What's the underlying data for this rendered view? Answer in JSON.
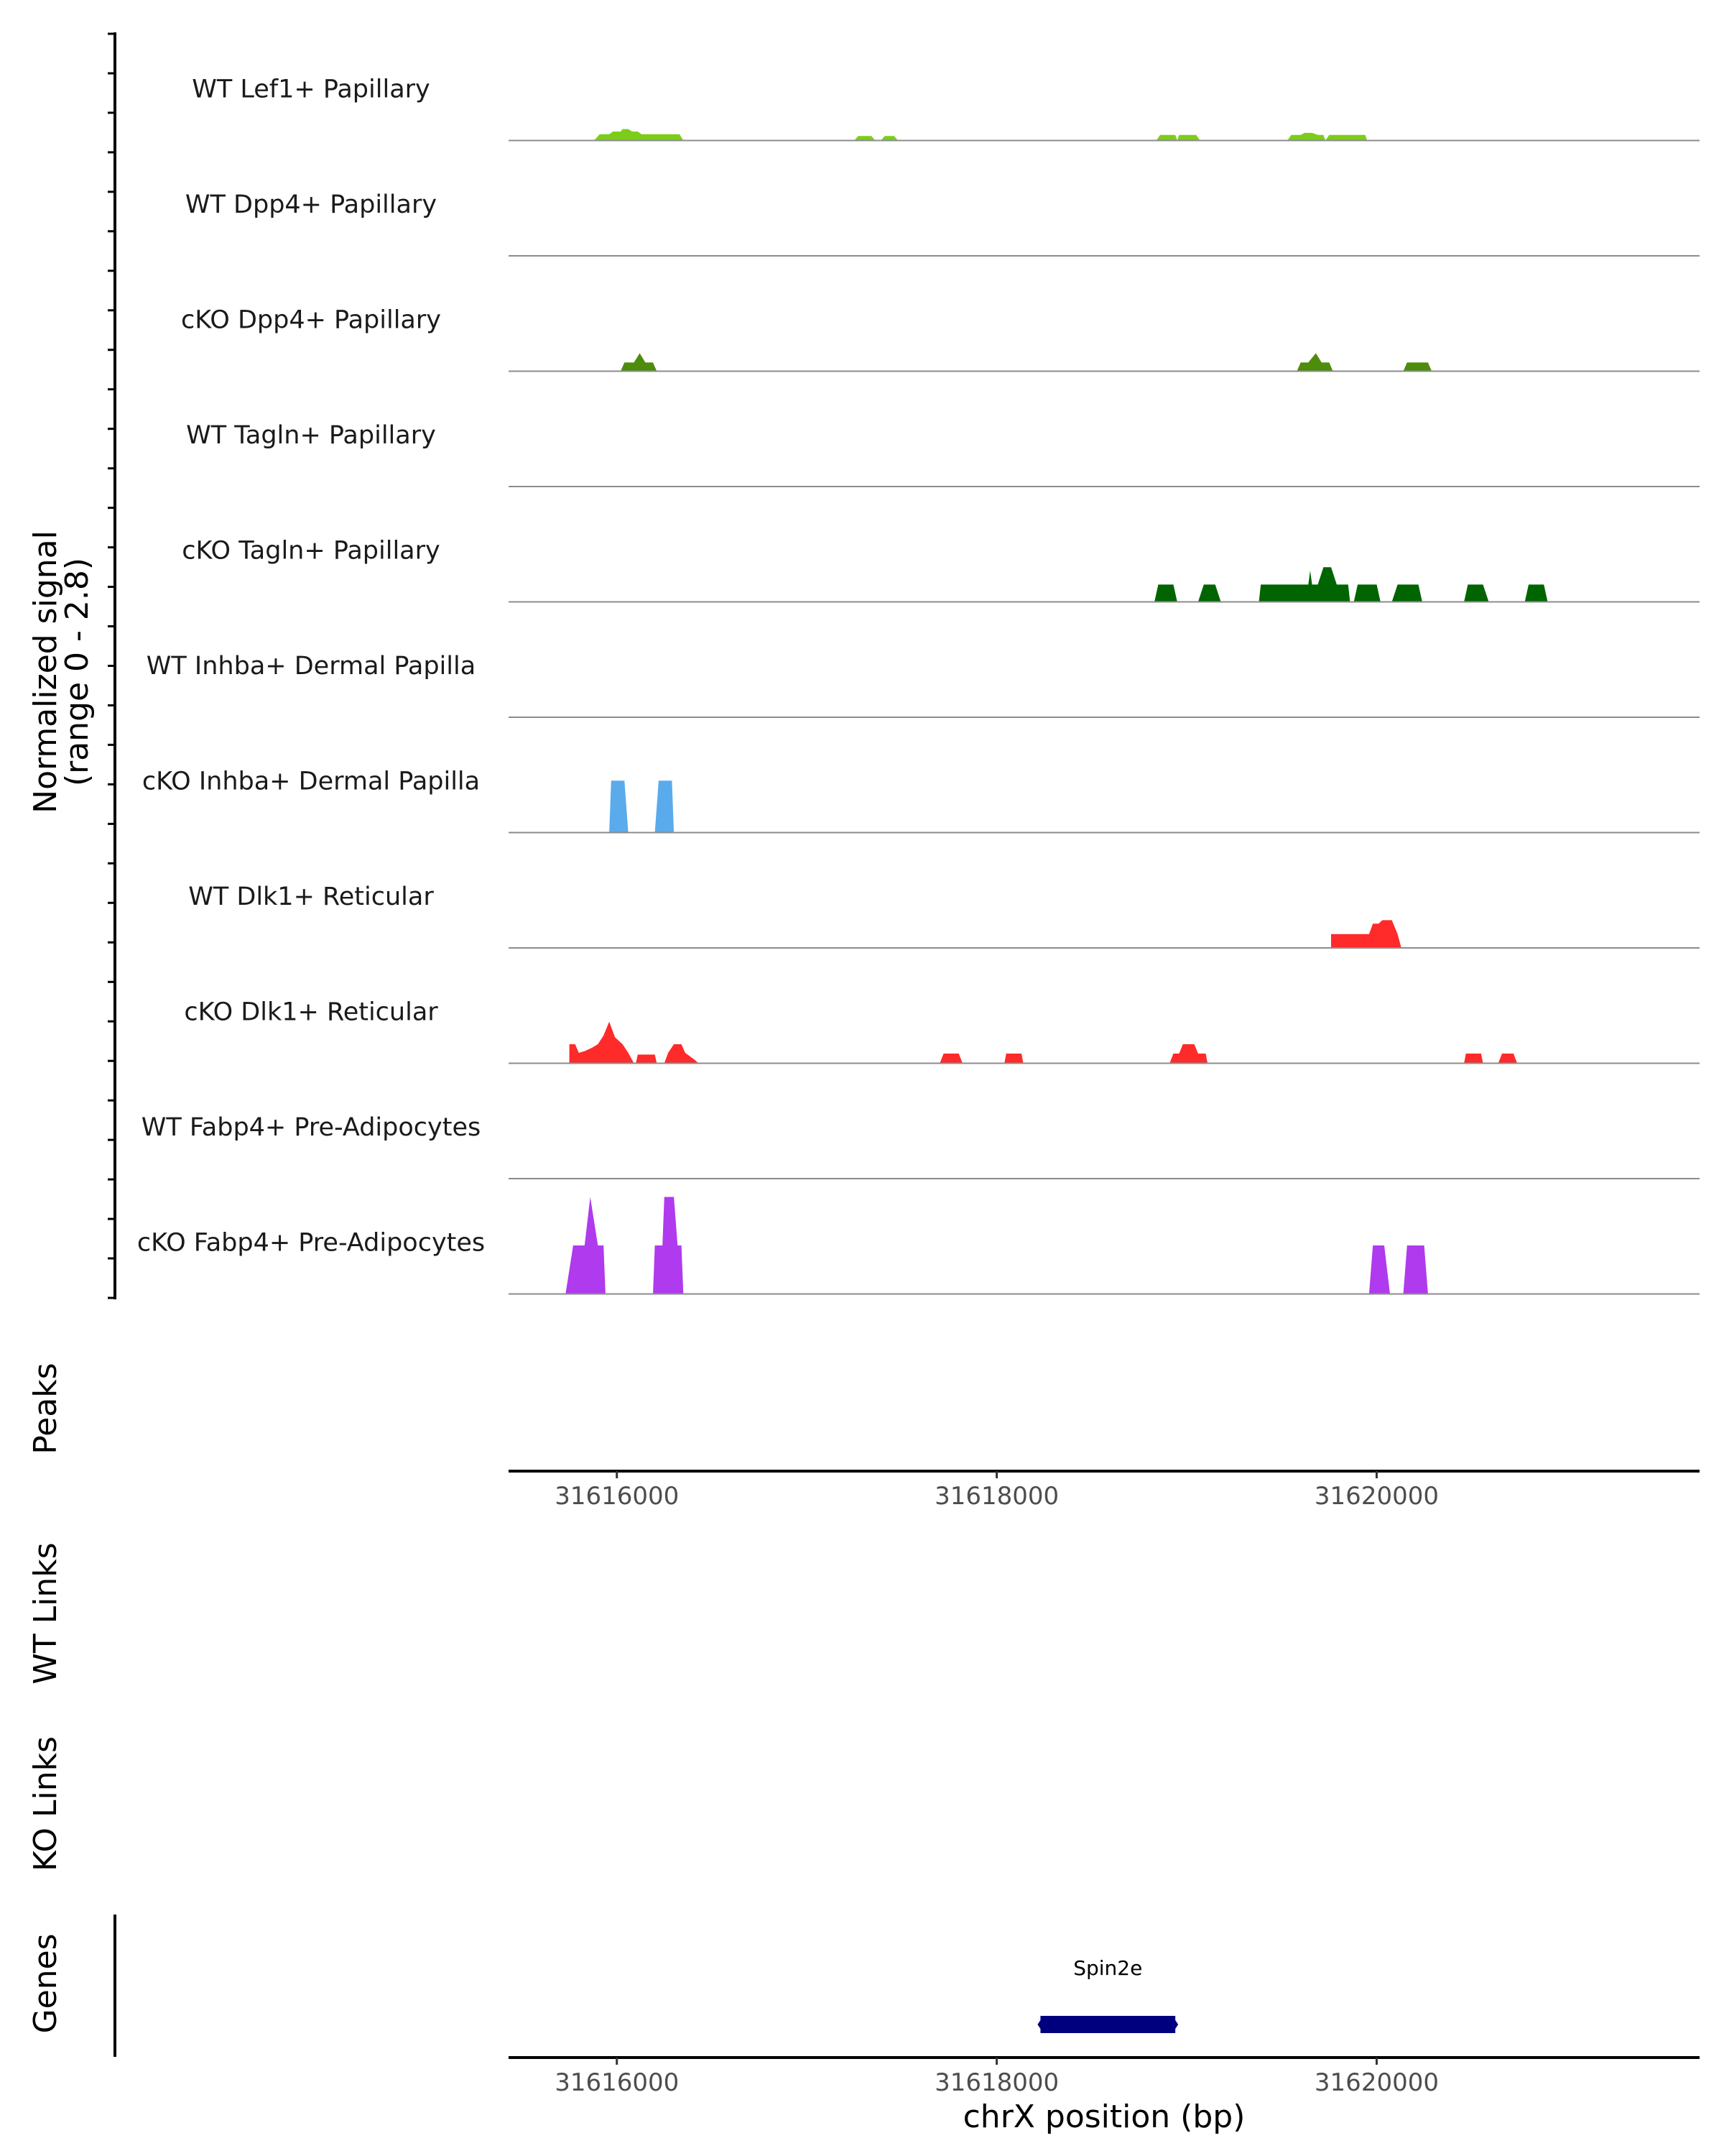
{
  "chart_data": {
    "type": "area",
    "title": "",
    "ylabel": "Normalized signal",
    "yrange_label": "(range 0 - 2.8)",
    "ylim": [
      0,
      2.8
    ],
    "xlabel": "chrX position (bp)",
    "xlim": [
      31615430,
      31621700
    ],
    "x_ticks": [
      31616000,
      31618000,
      31620000
    ],
    "x_tick_labels": [
      "31616000",
      "31618000",
      "31620000"
    ],
    "colors": {
      "lef1": "#7ccd1a",
      "papillary_dark": "#4e8c0c",
      "tagln": "#006400",
      "inhba": "#5aabec",
      "dlk1": "#ff2a2a",
      "fabp4": "#b03aee",
      "gene": "#00007f",
      "baseline": "#8c8c8c"
    },
    "tracks": [
      {
        "label": "WT Lef1+ Papillary",
        "color": "#7ccd1a",
        "points": [
          [
            31615880,
            0
          ],
          [
            31615910,
            0.18
          ],
          [
            31615960,
            0.18
          ],
          [
            31615980,
            0.26
          ],
          [
            31616020,
            0.26
          ],
          [
            31616030,
            0.33
          ],
          [
            31616060,
            0.33
          ],
          [
            31616080,
            0.26
          ],
          [
            31616110,
            0.26
          ],
          [
            31616130,
            0.18
          ],
          [
            31616330,
            0.18
          ],
          [
            31616350,
            0
          ],
          [
            31617250,
            0
          ],
          [
            31617270,
            0.13
          ],
          [
            31617340,
            0.13
          ],
          [
            31617360,
            0
          ],
          [
            31617390,
            0
          ],
          [
            31617410,
            0.13
          ],
          [
            31617460,
            0.13
          ],
          [
            31617480,
            0
          ],
          [
            31618840,
            0
          ],
          [
            31618860,
            0.16
          ],
          [
            31618940,
            0.16
          ],
          [
            31618950,
            0
          ],
          [
            31618960,
            0.16
          ],
          [
            31619050,
            0.16
          ],
          [
            31619070,
            0
          ],
          [
            31619530,
            0
          ],
          [
            31619550,
            0.16
          ],
          [
            31619600,
            0.16
          ],
          [
            31619620,
            0.22
          ],
          [
            31619660,
            0.22
          ],
          [
            31619690,
            0.16
          ],
          [
            31619720,
            0.16
          ],
          [
            31619730,
            0
          ],
          [
            31619750,
            0.16
          ],
          [
            31619940,
            0.16
          ],
          [
            31619950,
            0
          ]
        ]
      },
      {
        "label": "WT Dpp4+ Papillary",
        "color": "#4e8c0c",
        "points": []
      },
      {
        "label": "cKO Dpp4+ Papillary",
        "color": "#4e8c0c",
        "points": [
          [
            31616020,
            0
          ],
          [
            31616040,
            0.25
          ],
          [
            31616090,
            0.25
          ],
          [
            31616120,
            0.52
          ],
          [
            31616150,
            0.25
          ],
          [
            31616190,
            0.25
          ],
          [
            31616210,
            0
          ],
          [
            31619580,
            0
          ],
          [
            31619600,
            0.25
          ],
          [
            31619640,
            0.25
          ],
          [
            31619680,
            0.52
          ],
          [
            31619710,
            0.25
          ],
          [
            31619750,
            0.25
          ],
          [
            31619770,
            0
          ],
          [
            31620140,
            0
          ],
          [
            31620160,
            0.25
          ],
          [
            31620270,
            0.25
          ],
          [
            31620290,
            0
          ]
        ]
      },
      {
        "label": "WT Tagln+ Papillary",
        "color": "#006400",
        "points": []
      },
      {
        "label": "cKO Tagln+ Papillary",
        "color": "#006400",
        "points": [
          [
            31618830,
            0
          ],
          [
            31618850,
            0.5
          ],
          [
            31618930,
            0.5
          ],
          [
            31618950,
            0
          ],
          [
            31619060,
            0
          ],
          [
            31619090,
            0.5
          ],
          [
            31619150,
            0.5
          ],
          [
            31619180,
            0
          ],
          [
            31619380,
            0
          ],
          [
            31619390,
            0.5
          ],
          [
            31619640,
            0.5
          ],
          [
            31619650,
            0.9
          ],
          [
            31619660,
            0.5
          ],
          [
            31619690,
            0.5
          ],
          [
            31619720,
            1.0
          ],
          [
            31619760,
            1.0
          ],
          [
            31619790,
            0.5
          ],
          [
            31619850,
            0.5
          ],
          [
            31619860,
            0
          ],
          [
            31619880,
            0
          ],
          [
            31619900,
            0.5
          ],
          [
            31620000,
            0.5
          ],
          [
            31620020,
            0
          ],
          [
            31620080,
            0
          ],
          [
            31620110,
            0.5
          ],
          [
            31620220,
            0.5
          ],
          [
            31620240,
            0
          ],
          [
            31620460,
            0
          ],
          [
            31620480,
            0.5
          ],
          [
            31620560,
            0.5
          ],
          [
            31620590,
            0
          ],
          [
            31620780,
            0
          ],
          [
            31620800,
            0.5
          ],
          [
            31620880,
            0.5
          ],
          [
            31620900,
            0
          ]
        ]
      },
      {
        "label": "WT Inhba+ Dermal Papilla",
        "color": "#5aabec",
        "points": []
      },
      {
        "label": "cKO Inhba+ Dermal Papilla",
        "color": "#5aabec",
        "points": [
          [
            31615960,
            0
          ],
          [
            31615970,
            1.5
          ],
          [
            31616040,
            1.5
          ],
          [
            31616060,
            0
          ],
          [
            31616200,
            0
          ],
          [
            31616220,
            1.5
          ],
          [
            31616290,
            1.5
          ],
          [
            31616300,
            0
          ]
        ]
      },
      {
        "label": "WT Dlk1+ Reticular",
        "color": "#ff2a2a",
        "points": [
          [
            31619760,
            0
          ],
          [
            31619760,
            0.4
          ],
          [
            31619960,
            0.4
          ],
          [
            31619980,
            0.7
          ],
          [
            31620010,
            0.7
          ],
          [
            31620030,
            0.8
          ],
          [
            31620080,
            0.8
          ],
          [
            31620110,
            0.4
          ],
          [
            31620130,
            0
          ]
        ]
      },
      {
        "label": "cKO Dlk1+ Reticular",
        "color": "#ff2a2a",
        "points": [
          [
            31615750,
            0
          ],
          [
            31615750,
            0.55
          ],
          [
            31615780,
            0.55
          ],
          [
            31615800,
            0.3
          ],
          [
            31615830,
            0.35
          ],
          [
            31615870,
            0.45
          ],
          [
            31615900,
            0.55
          ],
          [
            31615930,
            0.8
          ],
          [
            31615960,
            1.2
          ],
          [
            31615990,
            0.75
          ],
          [
            31616030,
            0.55
          ],
          [
            31616060,
            0.3
          ],
          [
            31616090,
            0
          ],
          [
            31616100,
            0
          ],
          [
            31616110,
            0.25
          ],
          [
            31616200,
            0.25
          ],
          [
            31616210,
            0
          ],
          [
            31616250,
            0
          ],
          [
            31616270,
            0.3
          ],
          [
            31616300,
            0.55
          ],
          [
            31616340,
            0.55
          ],
          [
            31616360,
            0.3
          ],
          [
            31616410,
            0.1
          ],
          [
            31616430,
            0
          ],
          [
            31617700,
            0
          ],
          [
            31617720,
            0.28
          ],
          [
            31617800,
            0.28
          ],
          [
            31617820,
            0
          ],
          [
            31618040,
            0
          ],
          [
            31618050,
            0.28
          ],
          [
            31618130,
            0.28
          ],
          [
            31618140,
            0
          ],
          [
            31618910,
            0
          ],
          [
            31618930,
            0.28
          ],
          [
            31618960,
            0.28
          ],
          [
            31618980,
            0.55
          ],
          [
            31619040,
            0.55
          ],
          [
            31619060,
            0.28
          ],
          [
            31619100,
            0.28
          ],
          [
            31619110,
            0
          ],
          [
            31620460,
            0
          ],
          [
            31620470,
            0.28
          ],
          [
            31620550,
            0.28
          ],
          [
            31620560,
            0
          ],
          [
            31620640,
            0
          ],
          [
            31620660,
            0.28
          ],
          [
            31620720,
            0.28
          ],
          [
            31620740,
            0
          ]
        ]
      },
      {
        "label": "WT Fabp4+ Pre-Adipocytes",
        "color": "#b03aee",
        "points": []
      },
      {
        "label": "cKO Fabp4+ Pre-Adipocytes",
        "color": "#b03aee",
        "points": [
          [
            31615730,
            0
          ],
          [
            31615770,
            1.4
          ],
          [
            31615830,
            1.4
          ],
          [
            31615860,
            2.8
          ],
          [
            31615900,
            1.4
          ],
          [
            31615930,
            1.4
          ],
          [
            31615940,
            0
          ],
          [
            31616190,
            0
          ],
          [
            31616200,
            1.4
          ],
          [
            31616240,
            1.4
          ],
          [
            31616250,
            2.8
          ],
          [
            31616300,
            2.8
          ],
          [
            31616320,
            1.4
          ],
          [
            31616340,
            1.4
          ],
          [
            31616350,
            0
          ],
          [
            31619960,
            0
          ],
          [
            31619980,
            1.4
          ],
          [
            31620040,
            1.4
          ],
          [
            31620070,
            0
          ],
          [
            31620140,
            0
          ],
          [
            31620160,
            1.4
          ],
          [
            31620250,
            1.4
          ],
          [
            31620270,
            0
          ]
        ]
      }
    ],
    "panels": {
      "peaks": "Peaks",
      "wt_links": "WT Links",
      "ko_links": "KO Links",
      "genes": "Genes"
    },
    "genes": [
      {
        "name": "Spin2e",
        "start": 31618230,
        "end": 31618940,
        "strand": "-"
      }
    ]
  }
}
